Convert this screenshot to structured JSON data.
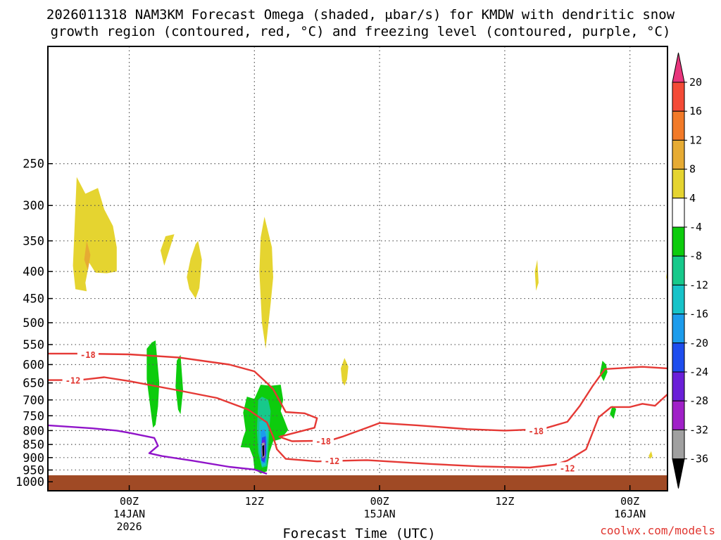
{
  "chart_data": {
    "type": "heatmap",
    "title_line1": "2026011318 NAM3KM Forecast Omega (shaded, μbar/s) for KMDW with dendritic snow",
    "title_line2": "growth region (contoured, red, °C) and freezing level (contoured, purple, °C)",
    "xlabel": "Forecast Time (UTC)",
    "credit": "coolwx.com/models",
    "x_range_hours": [
      -6.5,
      43.0
    ],
    "y_range_hpa": [
      1040,
      150
    ],
    "y_ticks": [
      250,
      300,
      350,
      400,
      450,
      500,
      550,
      600,
      650,
      700,
      750,
      800,
      850,
      900,
      950,
      1000
    ],
    "x_ticks": [
      {
        "hour": 0,
        "label": "00Z",
        "date": "14JAN",
        "year": "2026"
      },
      {
        "hour": 10,
        "label": "12Z",
        "date": "",
        "year": ""
      },
      {
        "hour": 20,
        "label": "00Z",
        "date": "15JAN",
        "year": ""
      },
      {
        "hour": 30,
        "label": "12Z",
        "date": "",
        "year": ""
      },
      {
        "hour": 40,
        "label": "00Z",
        "date": "16JAN",
        "year": ""
      }
    ],
    "ground_pressure_hpa": 972,
    "colorbar": {
      "label_values": [
        "20",
        "16",
        "12",
        "8",
        "4",
        "-4",
        "-8",
        "-12",
        "-16",
        "-20",
        "-24",
        "-28",
        "-32",
        "-36"
      ],
      "colors": [
        "#e8357c",
        "#f44a36",
        "#f27a28",
        "#e6ab33",
        "#e5d430",
        "#ffffff",
        "#0dcc0d",
        "#17c98b",
        "#17c3c9",
        "#1c9cec",
        "#1e4dee",
        "#6a1fd8",
        "#a020c8",
        "#a0a0a0",
        "#000000"
      ]
    },
    "contours": [
      {
        "label": "-18",
        "color": "#e53935",
        "points": [
          [
            -6.5,
            572
          ],
          [
            -4,
            572
          ],
          [
            0,
            574
          ],
          [
            4,
            582
          ],
          [
            8,
            600
          ],
          [
            10,
            618
          ],
          [
            11,
            650
          ],
          [
            11.5,
            668
          ],
          [
            12.5,
            738
          ],
          [
            14,
            742
          ],
          [
            15,
            758
          ],
          [
            14.8,
            790
          ],
          [
            12,
            822
          ],
          [
            13,
            838
          ],
          [
            16,
            836
          ],
          [
            17,
            822
          ],
          [
            19,
            790
          ],
          [
            20,
            774
          ],
          [
            23,
            782
          ],
          [
            27,
            795
          ],
          [
            30,
            800
          ],
          [
            33,
            795
          ],
          [
            35,
            770
          ],
          [
            36,
            718
          ],
          [
            37,
            660
          ],
          [
            38,
            612
          ],
          [
            41,
            606
          ],
          [
            43,
            610
          ]
        ],
        "labels": [
          [
            -3.3,
            574
          ],
          [
            15.5,
            837
          ],
          [
            32.5,
            800
          ]
        ]
      },
      {
        "label": "-12",
        "color": "#e53935",
        "points": [
          [
            -6.5,
            642
          ],
          [
            -4,
            642
          ],
          [
            -2,
            634
          ],
          [
            0,
            645
          ],
          [
            4,
            672
          ],
          [
            7,
            694
          ],
          [
            9.5,
            730
          ],
          [
            11,
            772
          ],
          [
            11.5,
            822
          ],
          [
            11.8,
            868
          ],
          [
            12.5,
            905
          ],
          [
            15,
            915
          ],
          [
            19,
            910
          ],
          [
            24,
            925
          ],
          [
            28,
            935
          ],
          [
            32,
            940
          ],
          [
            34,
            928
          ],
          [
            35,
            912
          ],
          [
            36.5,
            868
          ],
          [
            37.5,
            755
          ],
          [
            38.5,
            722
          ],
          [
            40,
            722
          ],
          [
            41,
            712
          ],
          [
            42,
            718
          ],
          [
            43,
            683
          ]
        ],
        "labels": [
          [
            -4.5,
            642
          ],
          [
            16.2,
            912
          ],
          [
            35,
            941
          ]
        ]
      },
      {
        "label": "freezing",
        "color": "#9014c9",
        "points": [
          [
            -6.5,
            782
          ],
          [
            -3,
            792
          ],
          [
            -1,
            800
          ],
          [
            0,
            808
          ],
          [
            2,
            826
          ],
          [
            2.3,
            855
          ],
          [
            1.6,
            883
          ],
          [
            2.6,
            894
          ],
          [
            5,
            912
          ],
          [
            8,
            937
          ],
          [
            10,
            948
          ],
          [
            11,
            966
          ]
        ],
        "labels": []
      }
    ],
    "shaded": [
      {
        "value": 6,
        "points": [
          [
            -4.3,
            432
          ],
          [
            -4.5,
            390
          ],
          [
            -4.4,
            345
          ],
          [
            -4.2,
            265
          ],
          [
            -3.5,
            285
          ],
          [
            -2.5,
            278
          ],
          [
            -2,
            305
          ],
          [
            -1.3,
            328
          ],
          [
            -1,
            360
          ],
          [
            -1,
            400
          ],
          [
            -1.8,
            403
          ],
          [
            -2.7,
            402
          ],
          [
            -3.2,
            385
          ],
          [
            -3.5,
            420
          ],
          [
            -3.4,
            436
          ]
        ]
      },
      {
        "value": 10,
        "points": [
          [
            -3.4,
            350
          ],
          [
            -3.1,
            372
          ],
          [
            -3.3,
            398
          ],
          [
            -3.6,
            380
          ]
        ]
      },
      {
        "value": 6,
        "points": [
          [
            2.5,
            365
          ],
          [
            2.9,
            343
          ],
          [
            3.6,
            340
          ],
          [
            2.8,
            390
          ]
        ]
      },
      {
        "value": 6,
        "points": [
          [
            4.6,
            410
          ],
          [
            4.9,
            378
          ],
          [
            5.3,
            355
          ],
          [
            5.5,
            350
          ],
          [
            5.8,
            380
          ],
          [
            5.6,
            430
          ],
          [
            5.3,
            450
          ],
          [
            4.8,
            432
          ]
        ]
      },
      {
        "value": 6,
        "points": [
          [
            10.4,
            400
          ],
          [
            10.5,
            345
          ],
          [
            10.8,
            315
          ],
          [
            11.4,
            360
          ],
          [
            11.5,
            410
          ],
          [
            11.3,
            460
          ],
          [
            10.9,
            560
          ],
          [
            10.6,
            500
          ]
        ]
      },
      {
        "value": 6,
        "points": [
          [
            17,
            645
          ],
          [
            16.9,
            610
          ],
          [
            17.2,
            583
          ],
          [
            17.5,
            605
          ],
          [
            17.4,
            640
          ],
          [
            17.2,
            658
          ]
        ]
      },
      {
        "value": 6,
        "points": [
          [
            32.4,
            400
          ],
          [
            32.6,
            380
          ],
          [
            32.7,
            420
          ],
          [
            32.5,
            435
          ]
        ]
      },
      {
        "value": 6,
        "points": [
          [
            41.5,
            893
          ],
          [
            41.7,
            875
          ],
          [
            41.8,
            895
          ],
          [
            41.6,
            905
          ]
        ]
      },
      {
        "value": 6,
        "points": [
          [
            42.9,
            410
          ],
          [
            43,
            395
          ],
          [
            43,
            420
          ]
        ]
      },
      {
        "value": -6,
        "points": [
          [
            1.4,
            640
          ],
          [
            1.4,
            560
          ],
          [
            1.8,
            545
          ],
          [
            2.1,
            540
          ],
          [
            2.4,
            650
          ],
          [
            2.3,
            720
          ],
          [
            2.1,
            780
          ],
          [
            1.9,
            790
          ],
          [
            1.8,
            760
          ]
        ]
      },
      {
        "value": -6,
        "points": [
          [
            3.7,
            660
          ],
          [
            3.8,
            590
          ],
          [
            4.1,
            575
          ],
          [
            4.3,
            670
          ],
          [
            4.1,
            745
          ],
          [
            3.9,
            730
          ]
        ]
      },
      {
        "value": -6,
        "points": [
          [
            8.9,
            860
          ],
          [
            9.1,
            825
          ],
          [
            9.3,
            800
          ],
          [
            9.1,
            740
          ],
          [
            9.4,
            690
          ],
          [
            10,
            697
          ],
          [
            10.5,
            655
          ],
          [
            11.3,
            658
          ],
          [
            12.1,
            655
          ],
          [
            12.3,
            700
          ],
          [
            12.1,
            735
          ],
          [
            12.4,
            765
          ],
          [
            12.7,
            798
          ],
          [
            12.1,
            830
          ],
          [
            11.5,
            838
          ],
          [
            11.2,
            880
          ],
          [
            11,
            955
          ],
          [
            10.5,
            965
          ],
          [
            10,
            946
          ],
          [
            9.9,
            900
          ],
          [
            9.6,
            862
          ]
        ]
      },
      {
        "value": -6,
        "points": [
          [
            37.6,
            624
          ],
          [
            37.8,
            590
          ],
          [
            38.1,
            600
          ],
          [
            38.2,
            620
          ],
          [
            37.9,
            645
          ]
        ]
      },
      {
        "value": -6,
        "points": [
          [
            38.4,
            745
          ],
          [
            38.6,
            718
          ],
          [
            38.9,
            728
          ],
          [
            38.7,
            760
          ]
        ]
      },
      {
        "value": -6,
        "points": [
          [
            43,
            665
          ],
          [
            43,
            640
          ],
          [
            43.2,
            650
          ]
        ]
      },
      {
        "value": -10,
        "points": [
          [
            10.3,
            700
          ],
          [
            10.6,
            690
          ],
          [
            11.1,
            700
          ],
          [
            11.3,
            735
          ],
          [
            11.2,
            790
          ],
          [
            11.1,
            870
          ],
          [
            11,
            935
          ],
          [
            10.6,
            940
          ],
          [
            10.3,
            880
          ],
          [
            10.2,
            800
          ]
        ]
      },
      {
        "value": -14,
        "points": [
          [
            10.4,
            770
          ],
          [
            10.8,
            760
          ],
          [
            11.1,
            790
          ],
          [
            11,
            860
          ],
          [
            10.9,
            930
          ],
          [
            10.6,
            935
          ],
          [
            10.4,
            870
          ]
        ]
      },
      {
        "value": -18,
        "points": [
          [
            10.5,
            800
          ],
          [
            10.8,
            795
          ],
          [
            11,
            830
          ],
          [
            10.9,
            920
          ],
          [
            10.6,
            925
          ],
          [
            10.5,
            870
          ]
        ]
      },
      {
        "value": -22,
        "points": [
          [
            10.6,
            825
          ],
          [
            10.9,
            820
          ],
          [
            10.95,
            880
          ],
          [
            10.8,
            920
          ],
          [
            10.55,
            912
          ]
        ]
      },
      {
        "value": -26,
        "points": [
          [
            10.6,
            835
          ],
          [
            10.85,
            832
          ],
          [
            10.9,
            888
          ],
          [
            10.7,
            915
          ],
          [
            10.55,
            880
          ]
        ]
      },
      {
        "value": -34,
        "points": [
          [
            10.6,
            845
          ],
          [
            10.8,
            842
          ],
          [
            10.82,
            895
          ],
          [
            10.65,
            903
          ],
          [
            10.58,
            880
          ]
        ]
      },
      {
        "value": -40,
        "points": [
          [
            10.63,
            855
          ],
          [
            10.78,
            852
          ],
          [
            10.78,
            890
          ],
          [
            10.66,
            898
          ]
        ]
      }
    ]
  }
}
